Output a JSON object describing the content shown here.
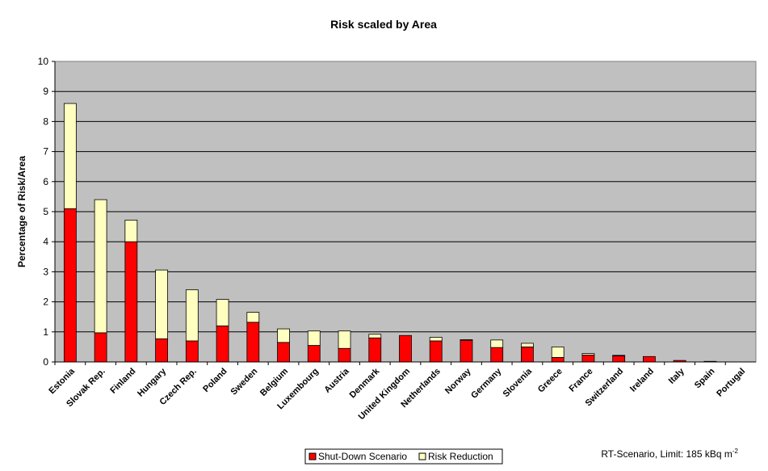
{
  "chart_data": {
    "type": "bar",
    "stacked": true,
    "title": "Risk scaled by Area",
    "ylabel": "Percentage of Risk/Area",
    "xlabel": "",
    "ylim": [
      0,
      10
    ],
    "yticks": [
      0,
      1,
      2,
      3,
      4,
      5,
      6,
      7,
      8,
      9,
      10
    ],
    "grid": true,
    "legend_position": "bottom-center",
    "categories": [
      "Estonia",
      "Slovak Rep.",
      "Finland",
      "Hungary",
      "Czech Rep.",
      "Poland",
      "Sweden",
      "Belgium",
      "Luxembourg",
      "Austria",
      "Denmark",
      "United Kingdom",
      "Netherlands",
      "Norway",
      "Germany",
      "Slovenia",
      "Greece",
      "France",
      "Switzerland",
      "Ireland",
      "Italy",
      "Spain",
      "Portugal"
    ],
    "series": [
      {
        "name": "Shut-Down Scenario",
        "color": "#ff0000",
        "values": [
          5.1,
          0.97,
          4.0,
          0.77,
          0.7,
          1.2,
          1.32,
          0.65,
          0.55,
          0.45,
          0.8,
          0.88,
          0.7,
          0.72,
          0.48,
          0.5,
          0.15,
          0.23,
          0.2,
          0.18,
          0.05,
          0.02,
          0.0
        ]
      },
      {
        "name": "Risk Reduction",
        "color": "#ffffc0",
        "values": [
          3.5,
          4.43,
          0.72,
          2.29,
          1.7,
          0.88,
          0.33,
          0.45,
          0.48,
          0.58,
          0.12,
          0.0,
          0.12,
          0.02,
          0.25,
          0.12,
          0.35,
          0.05,
          0.02,
          0.0,
          0.0,
          0.0,
          0.0
        ]
      }
    ],
    "plot_background": "#c0c0c0",
    "annotation": {
      "text": "RT-Scenario, Limit: 185 kBq m",
      "superscript": "-2"
    }
  }
}
